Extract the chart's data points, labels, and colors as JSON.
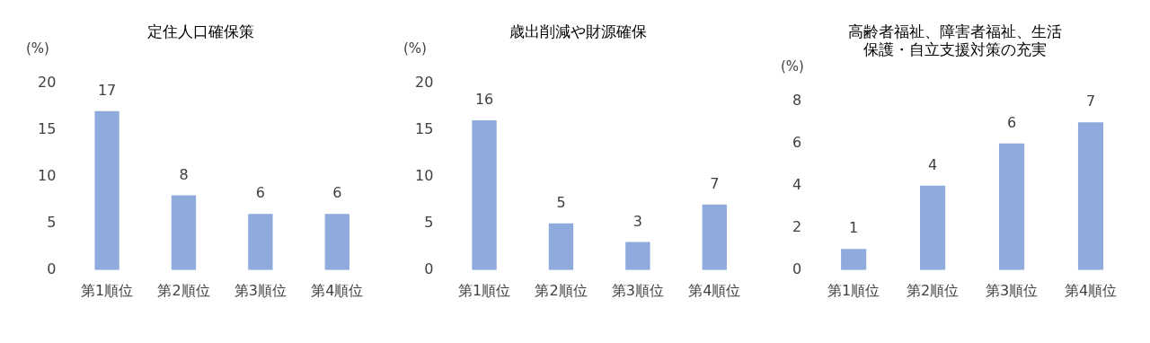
{
  "chart_data": [
    {
      "type": "bar",
      "title": "定住人口確保策",
      "ylabel": "(%)",
      "categories": [
        "第1順位",
        "第2順位",
        "第3順位",
        "第4順位"
      ],
      "values": [
        17,
        8,
        6,
        6
      ],
      "data_labels": true,
      "color": "#8faadc",
      "ylim": [
        0,
        20
      ],
      "yticks": [
        0,
        5,
        10,
        15,
        20
      ],
      "grid": false,
      "legend": false
    },
    {
      "type": "bar",
      "title": "歳出削減や財源確保",
      "ylabel": "(%)",
      "categories": [
        "第1順位",
        "第2順位",
        "第3順位",
        "第4順位"
      ],
      "values": [
        16,
        5,
        3,
        7
      ],
      "data_labels": true,
      "color": "#8faadc",
      "ylim": [
        0,
        20
      ],
      "yticks": [
        0,
        5,
        10,
        15,
        20
      ],
      "grid": false,
      "legend": false
    },
    {
      "type": "bar",
      "title": "高齢者福祉、障害者福祉、生活保護・自立支援対策の充実",
      "ylabel": "(%)",
      "categories": [
        "第1順位",
        "第2順位",
        "第3順位",
        "第4順位"
      ],
      "values": [
        1,
        4,
        6,
        7
      ],
      "data_labels": true,
      "color": "#8faadc",
      "ylim": [
        0,
        8
      ],
      "yticks": [
        0,
        2,
        4,
        6,
        8
      ],
      "grid": false,
      "legend": false
    }
  ]
}
